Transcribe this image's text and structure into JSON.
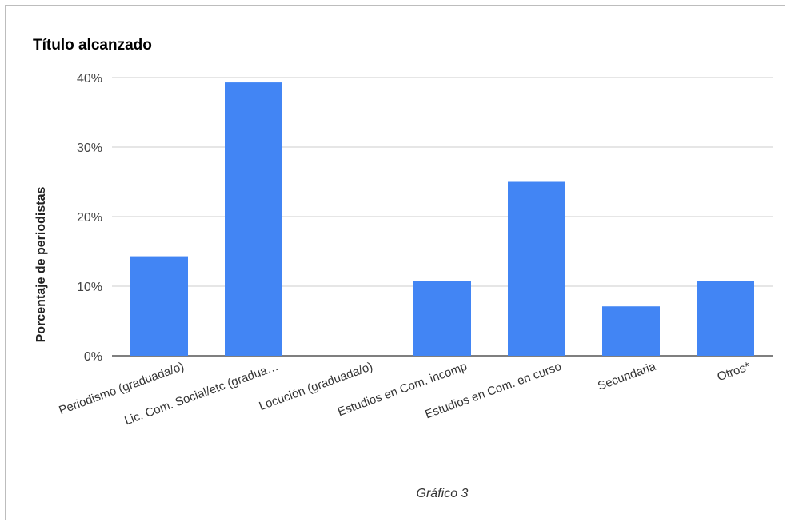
{
  "chart_data": {
    "type": "bar",
    "title": "Título alcanzado",
    "xlabel": "",
    "ylabel": "Porcentaje de periodistas",
    "caption": "Gráfico 3",
    "categories": [
      "Periodismo (graduada/o)",
      "Lic. Com. Social/etc (gradua…",
      "Locución (graduada/o)",
      "Estudios en Com. incomp",
      "Estudios en Com. en curso",
      "Secundaria",
      "Otros*"
    ],
    "values": [
      14.3,
      39.3,
      0,
      10.7,
      25.0,
      7.1,
      10.7
    ],
    "ylim": [
      0,
      40
    ],
    "yticks": [
      "0%",
      "10%",
      "20%",
      "30%",
      "40%"
    ],
    "ytick_values": [
      0,
      10,
      20,
      30,
      40
    ],
    "grid": true,
    "legend": "none",
    "bar_color": "#4285f4",
    "grid_color": "#cccccc",
    "axis_color": "#333333"
  }
}
